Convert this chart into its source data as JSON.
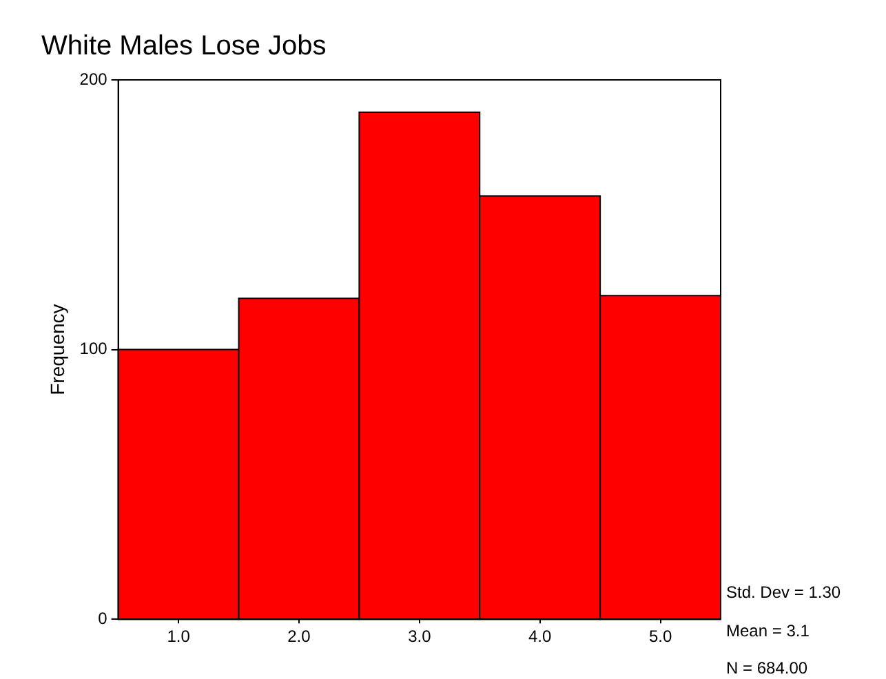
{
  "chart_data": {
    "type": "histogram",
    "title": "White Males Lose Jobs",
    "ylabel": "Frequency",
    "bins": [
      0.5,
      1.5,
      2.5,
      3.5,
      4.5,
      5.5
    ],
    "values": [
      100,
      119,
      188,
      157,
      120
    ],
    "color": "#ff0000",
    "xlim": [
      0.5,
      5.5
    ],
    "xticks": [
      {
        "value": 1,
        "label": "1.0"
      },
      {
        "value": 2,
        "label": "2.0"
      },
      {
        "value": 3,
        "label": "3.0"
      },
      {
        "value": 4,
        "label": "4.0"
      },
      {
        "value": 5,
        "label": "5.0"
      }
    ],
    "ylim": [
      0,
      200
    ],
    "yticks": [
      0,
      100,
      200
    ],
    "grid": false,
    "legend": false,
    "annotations": [
      "Std. Dev = 1.30",
      "Mean = 3.1",
      "N = 684.00"
    ]
  }
}
